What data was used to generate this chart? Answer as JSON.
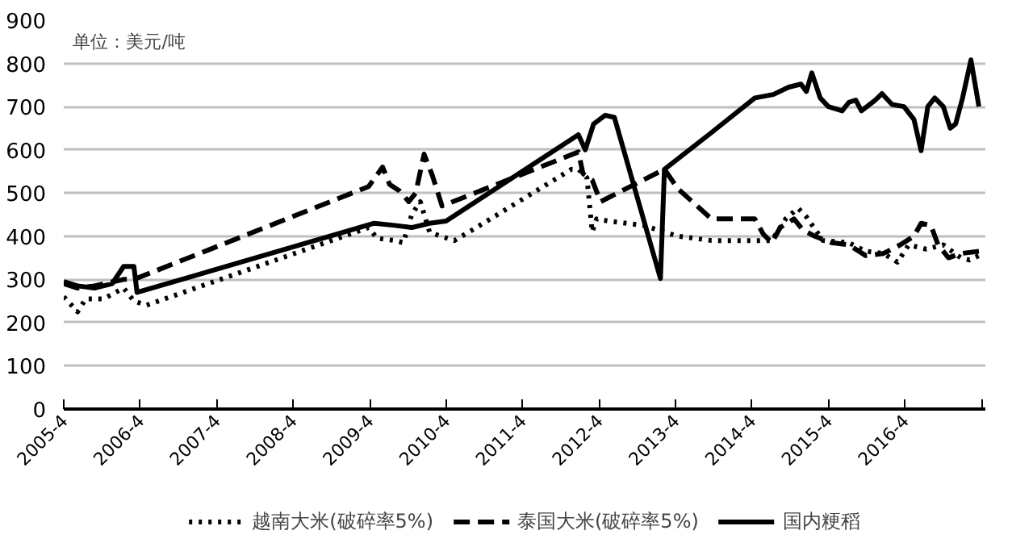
{
  "chart_data": {
    "type": "line",
    "annotations": [
      "单位：美元/吨"
    ],
    "xlim": [
      "2005-04-01",
      "2017-04-20"
    ],
    "xticks": [
      {
        "value": "2005-04",
        "label": "2005-4"
      },
      {
        "value": "2006-04",
        "label": "2006-4"
      },
      {
        "value": "2007-04",
        "label": "2007-4"
      },
      {
        "value": "2008-04",
        "label": "2008-4"
      },
      {
        "value": "2009-04",
        "label": "2009-4"
      },
      {
        "value": "2010-04",
        "label": "2010-4"
      },
      {
        "value": "2011-04",
        "label": "2011-4"
      },
      {
        "value": "2012-04",
        "label": "2012-4"
      },
      {
        "value": "2013-04",
        "label": "2013-4"
      },
      {
        "value": "2014-04",
        "label": "2014-4"
      },
      {
        "value": "2015-04",
        "label": "2015-4"
      },
      {
        "value": "2016-04",
        "label": "2016-4"
      },
      {
        "value": "2017-04",
        "label": null
      }
    ],
    "ylim": [
      0,
      900
    ],
    "yticks": [
      0,
      100,
      200,
      300,
      400,
      500,
      600,
      700,
      800,
      900
    ],
    "grid": "y",
    "legend": "bottom",
    "marker": "none",
    "series": [
      {
        "name": "越南大米(破碎率5%)",
        "color": "#000000",
        "line_style": "dotted",
        "x": [
          "2005-04-01",
          "2005-06-06",
          "2005-07-15",
          "2005-10-08",
          "2006-01-12",
          "2006-03-02",
          "2006-04-30",
          "2009-03-27",
          "2009-05-07",
          "2009-07-30",
          "2009-09-09",
          "2009-10-19",
          "2009-11-29",
          "2010-01-12",
          "2010-03-06",
          "2010-05-11",
          "2010-08-03",
          "2011-01-12",
          "2011-11-21",
          "2011-12-24",
          "2012-02-03",
          "2012-02-28",
          "2012-03-20",
          "2012-05-18",
          "2012-10-30",
          "2013-04-12",
          "2013-09-20",
          "2014-07-05",
          "2014-09-09",
          "2014-11-07",
          "2014-12-17",
          "2015-03-06",
          "2015-07-08",
          "2015-09-27",
          "2015-12-20",
          "2016-02-25",
          "2016-04-19",
          "2016-07-12",
          "2016-10-01",
          "2016-12-24",
          "2017-02-03",
          "2017-03-20"
        ],
        "values": [
          260,
          225,
          255,
          255,
          280,
          250,
          240,
          420,
          395,
          390,
          385,
          450,
          480,
          410,
          400,
          390,
          414,
          462,
          555,
          555,
          535,
          410,
          440,
          435,
          425,
          400,
          390,
          390,
          440,
          465,
          445,
          390,
          385,
          365,
          360,
          340,
          380,
          370,
          380,
          350,
          345,
          355
        ]
      },
      {
        "name": "泰国大米(破碎率5%)",
        "color": "#000000",
        "line_style": "dashed",
        "x": [
          "2005-04-01",
          "2005-06-06",
          "2005-08-25",
          "2006-01-12",
          "2006-03-02",
          "2009-03-27",
          "2009-06-02",
          "2009-07-05",
          "2009-08-21",
          "2009-10-05",
          "2009-11-07",
          "2009-12-17",
          "2010-01-26",
          "2010-03-13",
          "2011-12-24",
          "2012-01-15",
          "2012-02-28",
          "2012-04-08",
          "2013-02-07",
          "2013-04-12",
          "2013-09-20",
          "2014-04-15",
          "2014-05-25",
          "2014-07-05",
          "2014-08-14",
          "2014-10-19",
          "2014-11-29",
          "2015-01-26",
          "2015-04-15",
          "2015-07-08",
          "2015-09-27",
          "2015-12-20",
          "2016-03-09",
          "2016-05-14",
          "2016-06-17",
          "2016-08-03",
          "2016-09-06",
          "2016-10-26",
          "2016-12-24",
          "2017-03-20"
        ],
        "values": [
          290,
          280,
          285,
          300,
          300,
          515,
          560,
          520,
          505,
          480,
          500,
          590,
          540,
          470,
          595,
          545,
          530,
          480,
          555,
          510,
          440,
          440,
          405,
          385,
          420,
          440,
          415,
          400,
          385,
          380,
          355,
          360,
          380,
          400,
          430,
          425,
          380,
          350,
          360,
          365
        ]
      },
      {
        "name": "国内粳稻",
        "color": "#000000",
        "line_style": "solid",
        "x": [
          "2005-04-01",
          "2005-06-06",
          "2005-08-25",
          "2005-11-18",
          "2006-01-12",
          "2006-03-02",
          "2006-03-17",
          "2009-04-23",
          "2009-07-30",
          "2009-10-19",
          "2010-01-12",
          "2010-04-01",
          "2011-12-24",
          "2012-01-26",
          "2012-03-06",
          "2012-04-30",
          "2012-06-13",
          "2013-01-19",
          "2013-02-07",
          "2013-09-20",
          "2014-04-15",
          "2014-07-12",
          "2014-09-24",
          "2014-11-21",
          "2014-12-17",
          "2015-01-12",
          "2015-02-21",
          "2015-04-01",
          "2015-06-06",
          "2015-07-08",
          "2015-08-10",
          "2015-09-06",
          "2015-11-11",
          "2015-12-13",
          "2016-01-30",
          "2016-03-27",
          "2016-05-14",
          "2016-06-17",
          "2016-07-19",
          "2016-08-21",
          "2016-10-01",
          "2016-11-03",
          "2016-11-29",
          "2017-01-01",
          "2017-02-10",
          "2017-03-20"
        ],
        "values": [
          295,
          285,
          280,
          290,
          330,
          330,
          270,
          430,
          425,
          420,
          430,
          435,
          635,
          600,
          660,
          680,
          675,
          302,
          555,
          640,
          720,
          728,
          745,
          752,
          735,
          778,
          720,
          700,
          690,
          710,
          715,
          690,
          715,
          730,
          705,
          700,
          670,
          598,
          700,
          720,
          700,
          650,
          660,
          720,
          808,
          700
        ]
      }
    ]
  }
}
